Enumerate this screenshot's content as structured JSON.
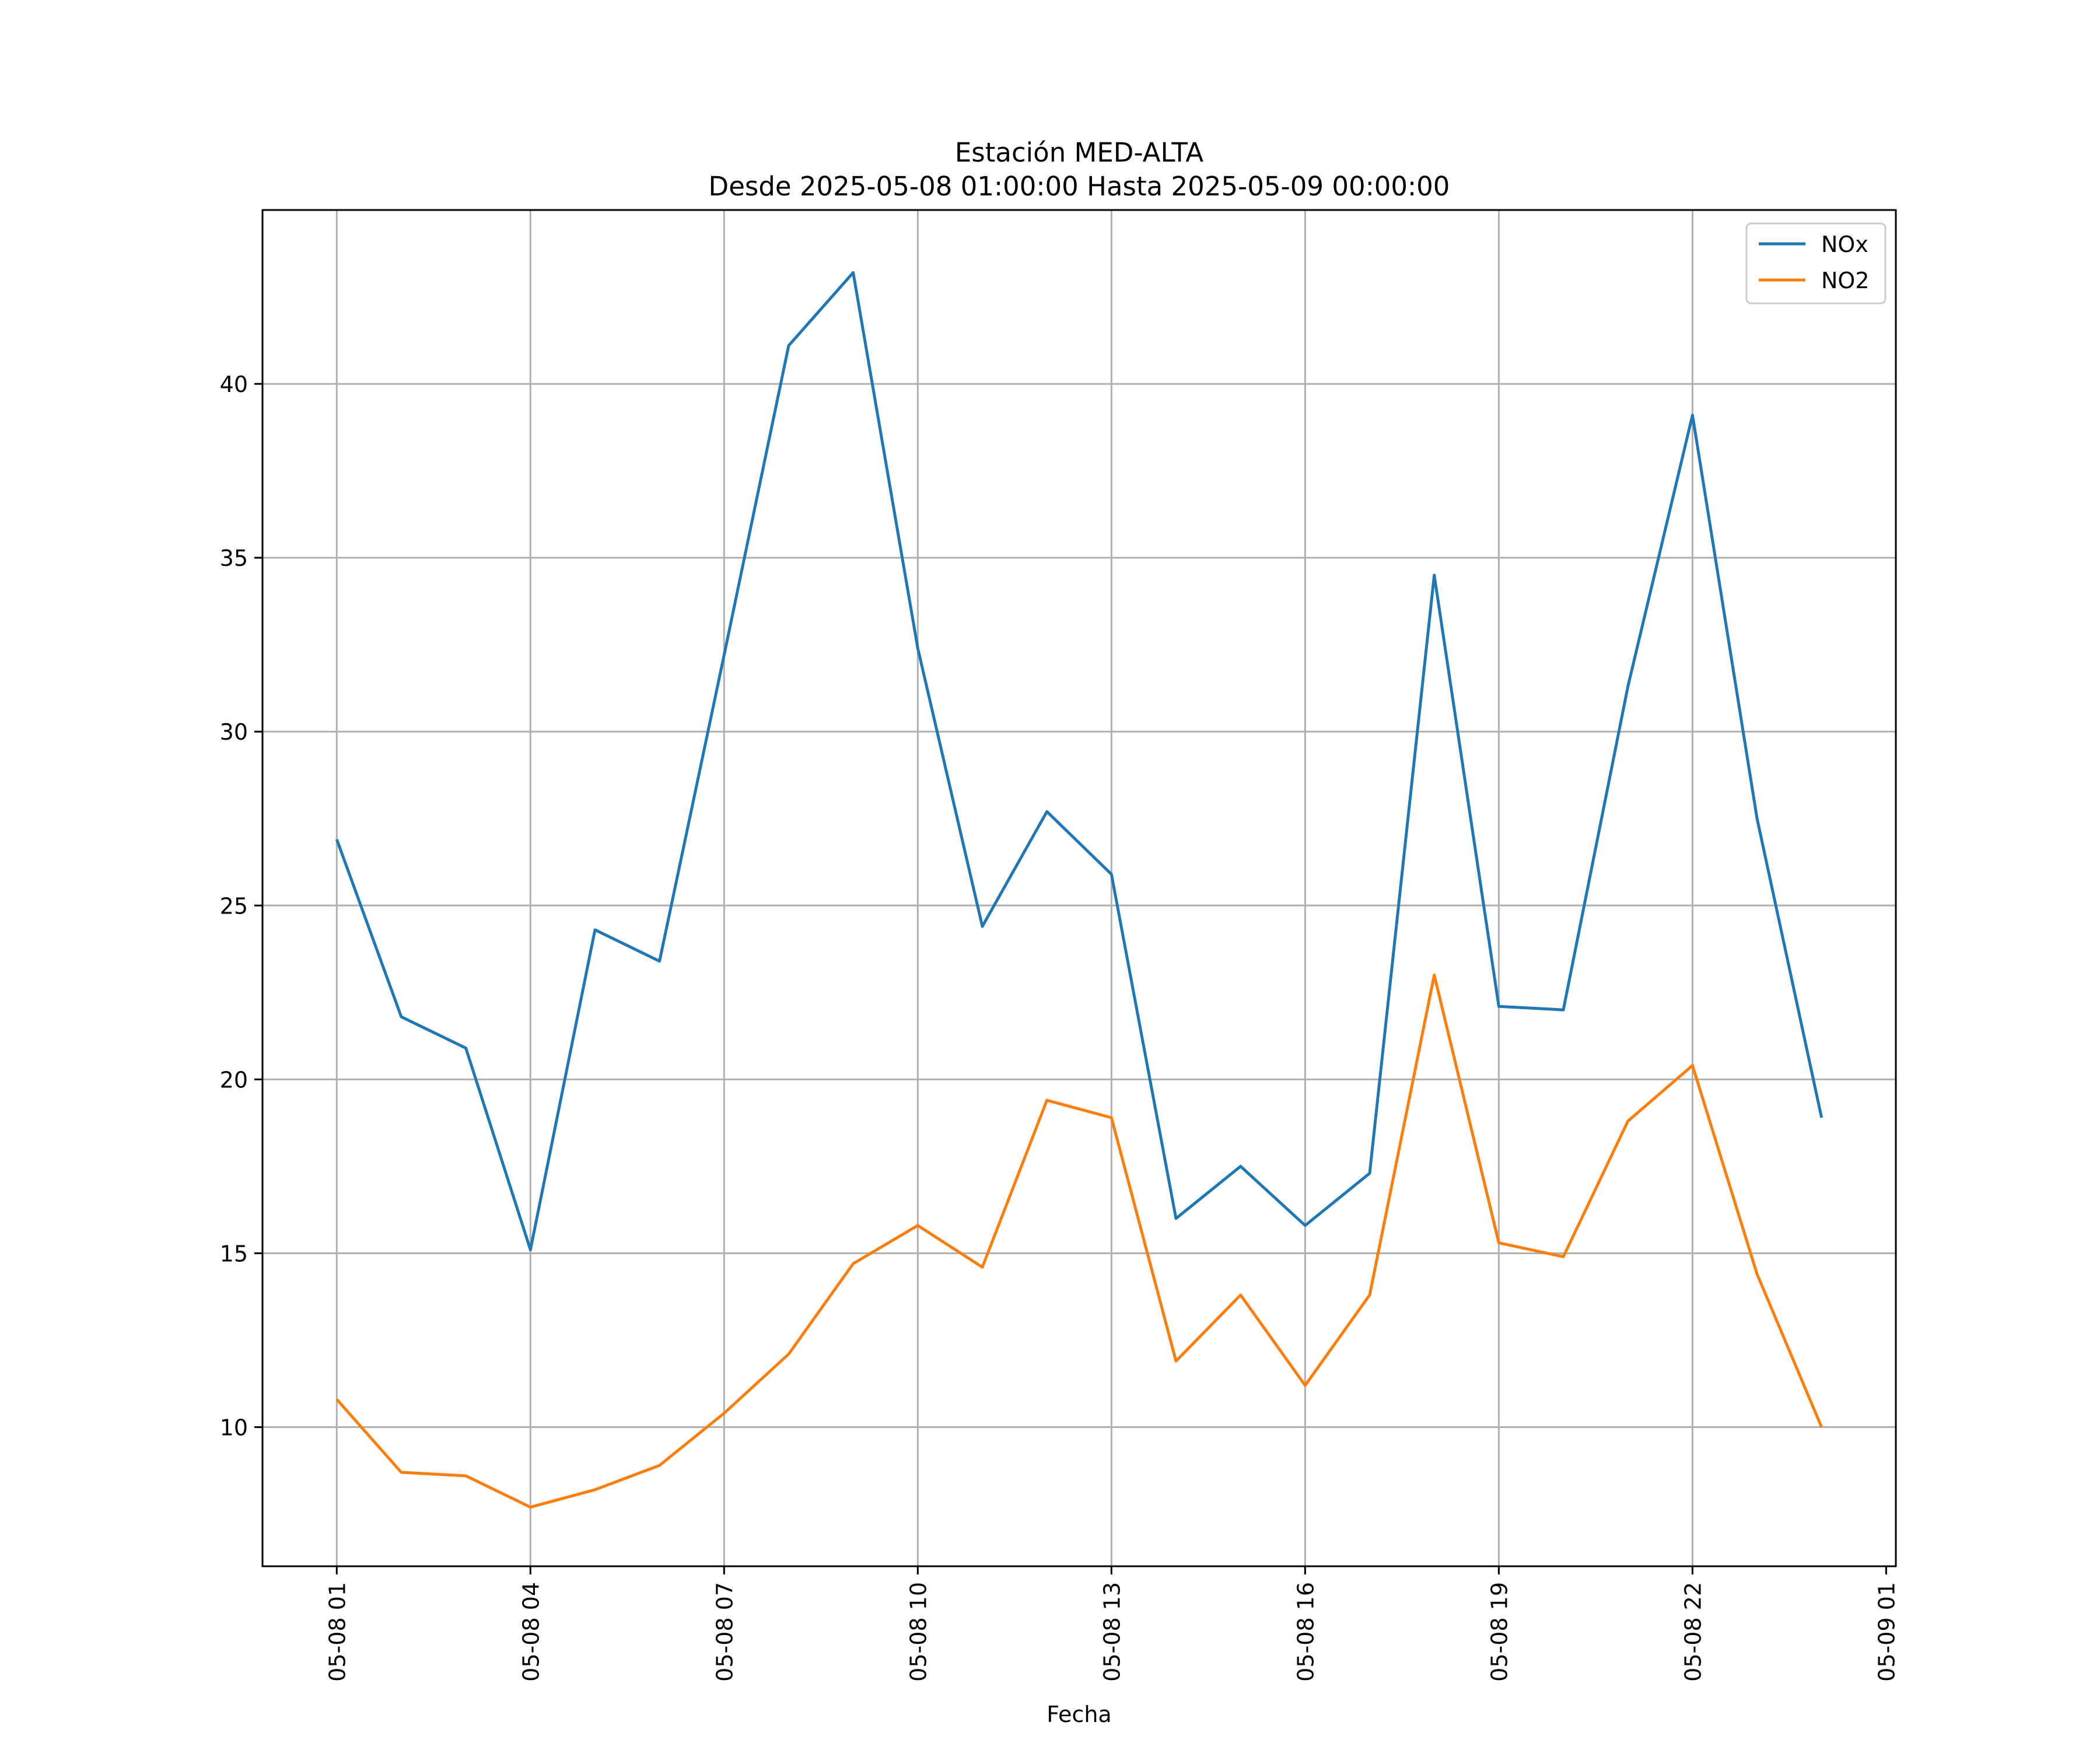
{
  "chart_data": {
    "type": "line",
    "title": "Estación MED-ALTA",
    "subtitle": "Desde 2025-05-08 01:00:00 Hasta 2025-05-09 00:00:00",
    "xlabel": "Fecha",
    "ylabel": "",
    "x": [
      "05-08 01",
      "05-08 02",
      "05-08 03",
      "05-08 04",
      "05-08 05",
      "05-08 06",
      "05-08 07",
      "05-08 08",
      "05-08 09",
      "05-08 10",
      "05-08 11",
      "05-08 12",
      "05-08 13",
      "05-08 14",
      "05-08 15",
      "05-08 16",
      "05-08 17",
      "05-08 18",
      "05-08 19",
      "05-08 20",
      "05-08 21",
      "05-08 22",
      "05-08 23",
      "05-09 00"
    ],
    "xticks": [
      "05-08 01",
      "05-08 04",
      "05-08 07",
      "05-08 10",
      "05-08 13",
      "05-08 16",
      "05-08 19",
      "05-08 22",
      "05-09 01"
    ],
    "xtick_hours": [
      0,
      3,
      6,
      9,
      12,
      15,
      18,
      21,
      24
    ],
    "yticks": [
      10,
      15,
      20,
      25,
      30,
      35,
      40
    ],
    "ylim": [
      6.0,
      45.0
    ],
    "xlim_hours": [
      -1.15,
      24.15
    ],
    "grid": true,
    "legend": "top-right",
    "series": [
      {
        "name": "NOx",
        "color": "#1f77b4",
        "values": [
          26.9,
          21.8,
          20.9,
          15.1,
          24.3,
          23.4,
          32.2,
          41.1,
          43.2,
          32.4,
          24.4,
          27.7,
          25.9,
          16.0,
          17.5,
          15.8,
          17.3,
          34.5,
          22.1,
          22.0,
          31.3,
          39.1,
          27.5,
          18.9
        ]
      },
      {
        "name": "NO2",
        "color": "#ff7f0e",
        "values": [
          10.8,
          8.7,
          8.6,
          7.7,
          8.2,
          8.9,
          10.4,
          12.1,
          14.7,
          15.8,
          14.6,
          19.4,
          18.9,
          11.9,
          13.8,
          11.2,
          13.8,
          23.0,
          15.3,
          14.9,
          18.8,
          20.4,
          14.4,
          10.0
        ]
      }
    ]
  }
}
